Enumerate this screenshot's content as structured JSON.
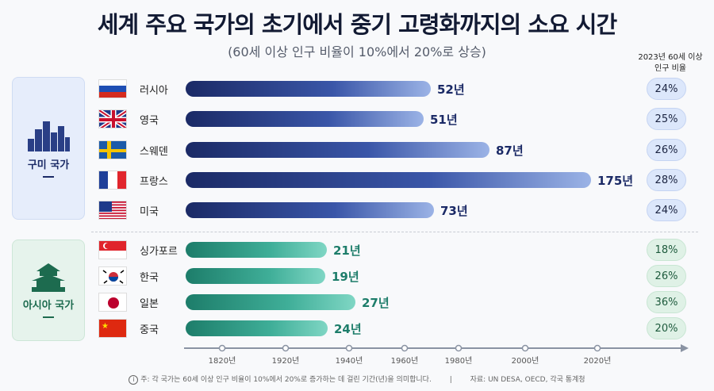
{
  "title": "세계 주요 국가의 초기에서 중기 고령화까지의 소요 시간",
  "subtitle": "(60세 이상 인구 비율이 10%에서 20%로 상승)",
  "column_header": [
    "2023년 60세 이상",
    "인구 비율"
  ],
  "groups": [
    {
      "label": "구미 국가",
      "color": "#1b2a66",
      "rows": [
        {
          "country": "러시아",
          "flag": "russia",
          "years": 52,
          "years_label": "52년",
          "share": "24%"
        },
        {
          "country": "영국",
          "flag": "uk",
          "years": 51,
          "years_label": "51년",
          "share": "25%"
        },
        {
          "country": "스웨덴",
          "flag": "sweden",
          "years": 87,
          "years_label": "87년",
          "share": "26%"
        },
        {
          "country": "프랑스",
          "flag": "france",
          "years": 175,
          "years_label": "175년",
          "share": "28%"
        },
        {
          "country": "미국",
          "flag": "usa",
          "years": 73,
          "years_label": "73년",
          "share": "24%"
        }
      ]
    },
    {
      "label": "아시아 국가",
      "color": "#1d7d6a",
      "rows": [
        {
          "country": "싱가포르",
          "flag": "singapore",
          "years": 21,
          "years_label": "21년",
          "share": "18%"
        },
        {
          "country": "한국",
          "flag": "korea",
          "years": 19,
          "years_label": "19년",
          "share": "26%"
        },
        {
          "country": "일본",
          "flag": "japan",
          "years": 27,
          "years_label": "27년",
          "share": "36%"
        },
        {
          "country": "중국",
          "flag": "china",
          "years": 24,
          "years_label": "24년",
          "share": "20%"
        }
      ]
    }
  ],
  "axis_ticks": [
    "1820년",
    "1920년",
    "1940년",
    "1960년",
    "1980년",
    "2000년",
    "2020년"
  ],
  "footer": {
    "note": "주: 각 국가는 60세 이상 인구 비율이 10%에서 20%로 증가하는 데 걸린 기간(년)을 의미합니다.",
    "separator": "|",
    "source": "자료: UN DESA, OECD, 각국 통계청"
  }
}
